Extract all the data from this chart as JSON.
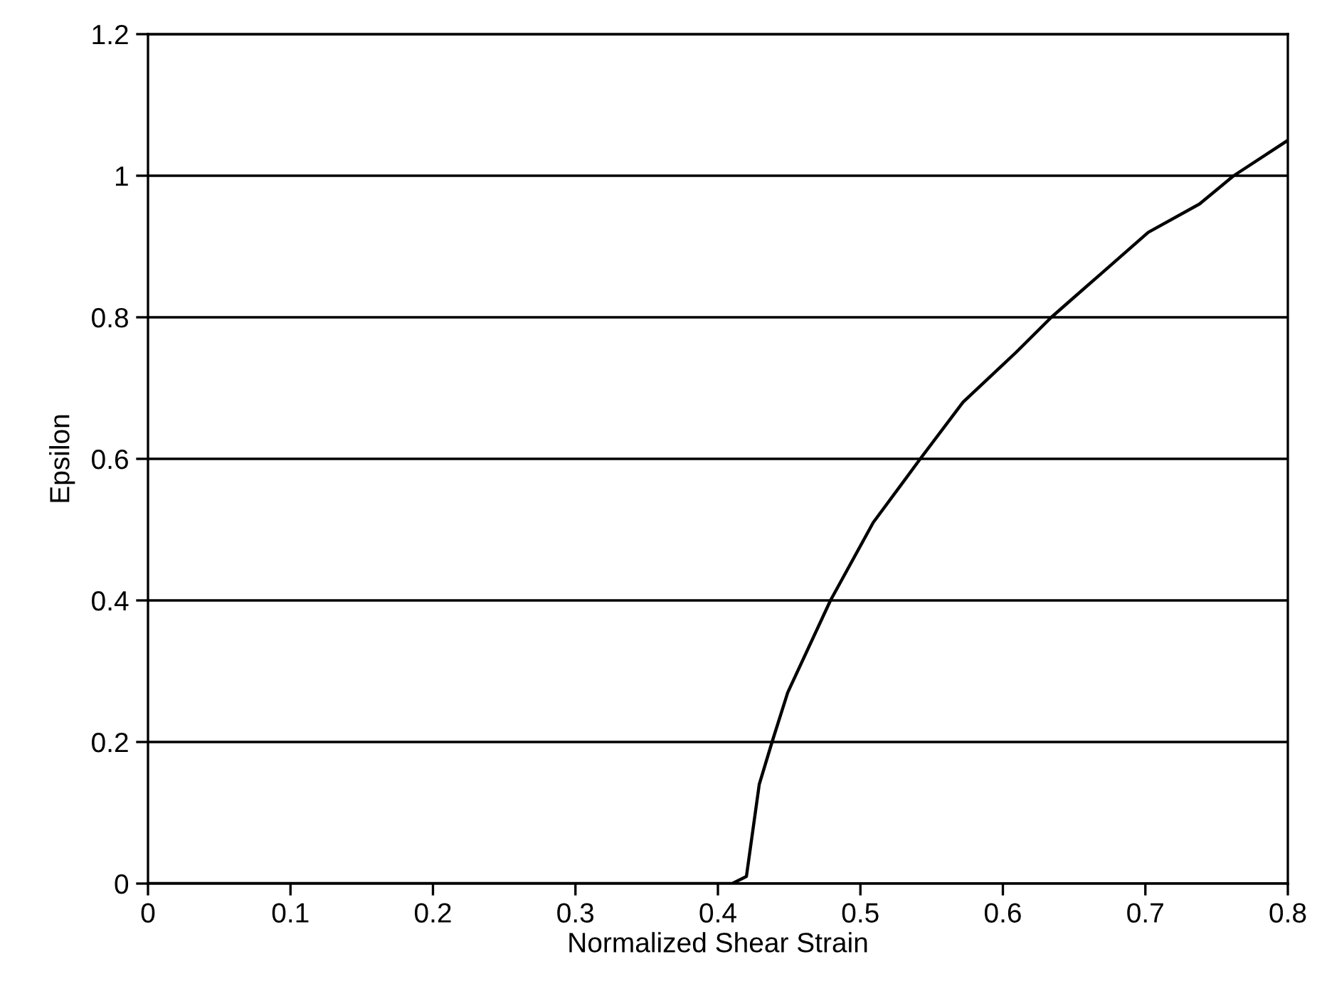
{
  "chart_data": {
    "type": "line",
    "xlabel": "Normalized Shear Strain",
    "ylabel": "Epsilon",
    "series": [
      {
        "color": "#000000",
        "x": [
          0,
          0.2,
          0.41,
          0.42,
          0.429,
          0.438,
          0.449,
          0.479,
          0.509,
          0.542,
          0.572,
          0.609,
          0.634,
          0.668,
          0.702,
          0.738,
          0.762,
          0.8
        ],
        "values": [
          0,
          0,
          0,
          0.01,
          0.14,
          0.2,
          0.27,
          0.4,
          0.51,
          0.6,
          0.68,
          0.75,
          0.8,
          0.86,
          0.92,
          0.96,
          1.0,
          1.05
        ]
      }
    ],
    "xlim": [
      0,
      0.8
    ],
    "xticks": [
      0,
      0.1,
      0.2,
      0.3,
      0.4,
      0.5,
      0.6,
      0.7,
      0.8
    ],
    "ylim": [
      0,
      1.2
    ],
    "yticks": [
      0,
      0.2,
      0.4,
      0.6,
      0.8,
      1,
      1.2
    ],
    "grid": "y",
    "marker": "none",
    "line_style": "solid"
  }
}
